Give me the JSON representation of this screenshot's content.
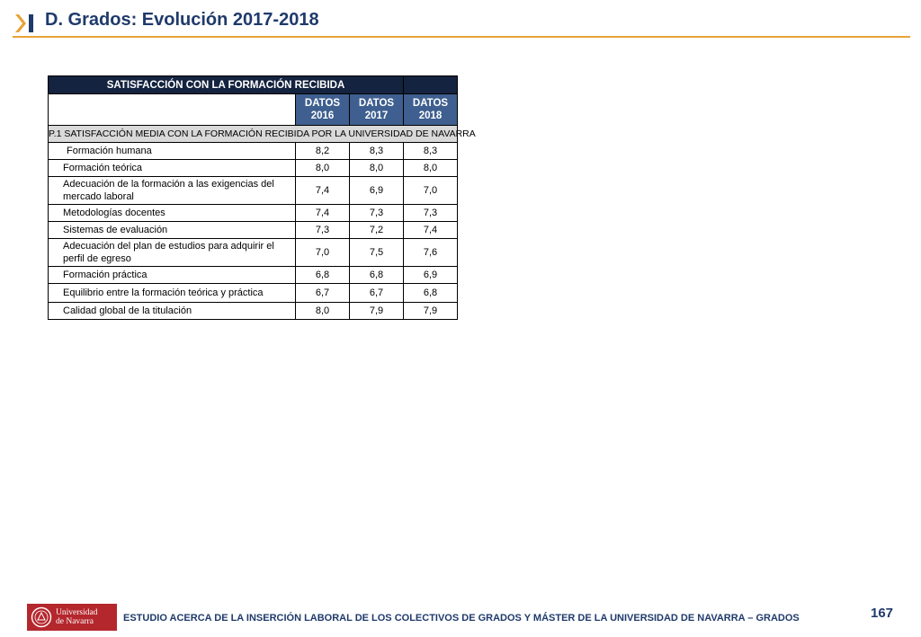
{
  "header": {
    "title": "D. Grados: Evolución 2017-2018"
  },
  "table": {
    "title": "SATISFACCIÓN CON LA FORMACIÓN RECIBIDA",
    "years": [
      "DATOS 2016",
      "DATOS 2017",
      "DATOS 2018"
    ],
    "section": "P.1 SATISFACCIÓN MEDIA CON LA FORMACIÓN RECIBIDA POR LA UNIVERSIDAD DE NAVARRA",
    "rows": [
      {
        "label": "Formación humana",
        "v2016": "8,2",
        "v2017": "8,3",
        "v2018": "8,3"
      },
      {
        "label": "Formación teórica",
        "v2016": "8,0",
        "v2017": "8,0",
        "v2018": "8,0"
      },
      {
        "label": "Adecuación de la formación a las exigencias del mercado laboral",
        "v2016": "7,4",
        "v2017": "6,9",
        "v2018": "7,0"
      },
      {
        "label": "Metodologías docentes",
        "v2016": "7,4",
        "v2017": "7,3",
        "v2018": "7,3"
      },
      {
        "label": "Sistemas de evaluación",
        "v2016": "7,3",
        "v2017": "7,2",
        "v2018": "7,4"
      },
      {
        "label": "Adecuación del plan de estudios para adquirir el perfil de egreso",
        "v2016": "7,0",
        "v2017": "7,5",
        "v2018": "7,6"
      },
      {
        "label": "Formación práctica",
        "v2016": "6,8",
        "v2017": "6,8",
        "v2018": "6,9"
      },
      {
        "label": "Equilibrio entre la formación teórica y práctica",
        "v2016": "6,7",
        "v2017": "6,7",
        "v2018": "6,8"
      },
      {
        "label": "Calidad global de la titulación",
        "v2016": "8,0",
        "v2017": "7,9",
        "v2018": "7,9"
      }
    ]
  },
  "footer": {
    "logo_line1": "Universidad",
    "logo_line2": "de Navarra",
    "text": "ESTUDIO ACERCA DE LA INSERCIÓN LABORAL DE LOS COLECTIVOS DE GRADOS Y MÁSTER DE LA UNIVERSIDAD DE NAVARRA – GRADOS",
    "page_number": "167"
  },
  "colors": {
    "accent": "#e8a33a",
    "title_navy": "#1f3a6b",
    "table_header": "#14233f",
    "year_header": "#3e5f8f",
    "section_gray": "#d9d9d9",
    "logo_red": "#b4272d"
  }
}
